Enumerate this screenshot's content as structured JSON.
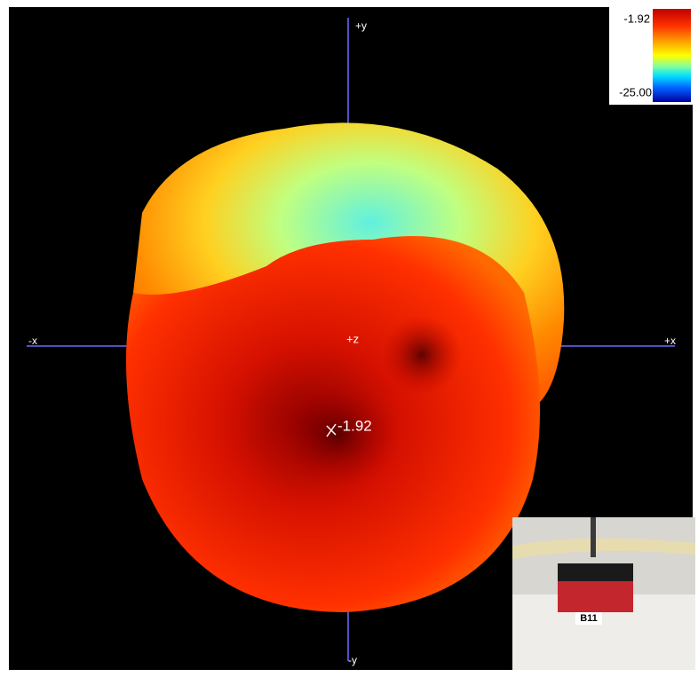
{
  "legend": {
    "max_label": "-1.92",
    "min_label": "-25.00"
  },
  "axes": {
    "top": "+y",
    "bottom": "-y",
    "left": "-x",
    "right": "+x",
    "center": "+z"
  },
  "peak_label": "-1.92",
  "photo_label": "B11"
}
